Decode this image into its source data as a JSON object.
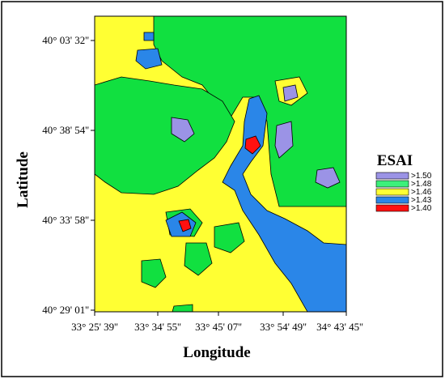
{
  "axes": {
    "x_label": "Longitude",
    "y_label": "Latitude",
    "x_ticks": [
      "33° 25' 39''",
      "33° 34' 55''",
      "33° 45' 07''",
      "33° 54' 49''",
      "34° 43' 45''"
    ],
    "y_ticks": [
      "40° 03' 32''",
      "40° 38' 54''",
      "40° 33' 58''",
      "40° 29' 01''"
    ]
  },
  "legend": {
    "title": "ESAI",
    "items": [
      {
        "label": ">1.50",
        "color": "#9b93e6"
      },
      {
        "label": ">1.48",
        "color": "#3cf07a"
      },
      {
        "label": ">1.46",
        "color": "#ffff33"
      },
      {
        "label": ">1.43",
        "color": "#2a86e8"
      },
      {
        "label": ">1.40",
        "color": "#ff1010"
      }
    ]
  }
}
